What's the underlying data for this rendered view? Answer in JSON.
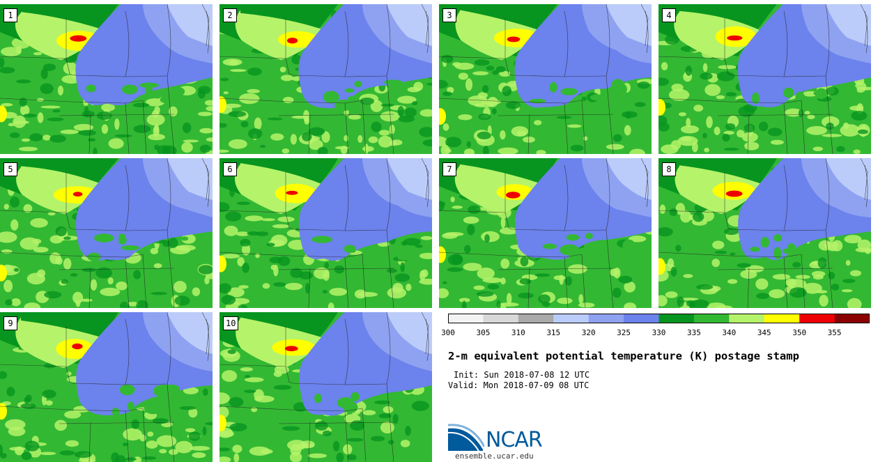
{
  "title": "2-m equivalent potential temperature (K) postage stamp",
  "init": "Init: Sun 2018-07-08 12 UTC",
  "valid": "Valid: Mon 2018-07-09 08 UTC",
  "panels": [
    {
      "label": "1"
    },
    {
      "label": "2"
    },
    {
      "label": "3"
    },
    {
      "label": "4"
    },
    {
      "label": "5"
    },
    {
      "label": "6"
    },
    {
      "label": "7"
    },
    {
      "label": "8"
    },
    {
      "label": "9"
    },
    {
      "label": "10"
    }
  ],
  "colorbar": {
    "ticks": [
      "300",
      "305",
      "310",
      "315",
      "320",
      "325",
      "330",
      "335",
      "340",
      "345",
      "350",
      "355"
    ],
    "colors": [
      "#f3f3f3",
      "#d8d8d8",
      "#a9a9a9",
      "#bcccfa",
      "#8fa2f2",
      "#6c82ec",
      "#07951f",
      "#33b833",
      "#b5f36a",
      "#ffff00",
      "#ee0000",
      "#8b0000"
    ]
  },
  "logo": {
    "name": "NCAR",
    "site": "ensemble.ucar.edu"
  }
}
